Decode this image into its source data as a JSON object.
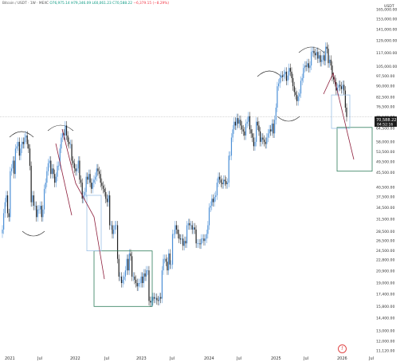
{
  "header": {
    "symbol": "Bitcoin / USDT · 1W · MEXC",
    "open": "O76,975.14",
    "high": "H79,346.09",
    "low": "L60,061.23",
    "close": "C70,588.22",
    "change": "−6,379.15 (−8.29%)"
  },
  "quote_currency": "USDT",
  "price_label": {
    "price": "70,588.22",
    "countdown": "04:52:16"
  },
  "colors": {
    "up": "#4b8fd6",
    "down": "#1e1e1e",
    "box_green": "#2e7d5b",
    "box_blue": "#9cc1e6",
    "arrow": "#8e1f3c"
  },
  "chart_data": {
    "type": "candlestick",
    "y_scale": "log",
    "y_ticks": [
      "11,120.00",
      "12,000.00",
      "13,000.00",
      "14,400.00",
      "15,800.00",
      "17,400.00",
      "19,000.00",
      "20,900.00",
      "22,800.00",
      "24,500.00",
      "26,500.00",
      "28,500.00",
      "31,500.00",
      "34,500.00",
      "37,500.00",
      "40,500.00",
      "45,500.00",
      "49,500.00",
      "53,500.00",
      "58,000.00",
      "64,500.00",
      "70,500.00",
      "76,500.00",
      "82,500.00",
      "90,000.00",
      "97,500.00",
      "105,000.00",
      "117,000.00",
      "129,000.00",
      "141,000.00",
      "153,000.00",
      "165,000.00"
    ],
    "x_ticks": [
      "2021",
      "Jul",
      "2022",
      "Jul",
      "2023",
      "Jul",
      "2024",
      "Jul",
      "2025",
      "Jul",
      "2026",
      "Jul"
    ],
    "weekly_close": [
      29000,
      33000,
      36000,
      38000,
      33000,
      32000,
      46000,
      47000,
      50000,
      45000,
      55000,
      56000,
      58000,
      52000,
      55000,
      58000,
      57000,
      60000,
      61000,
      57000,
      55000,
      48000,
      36000,
      38000,
      35000,
      35000,
      32000,
      34000,
      34000,
      35000,
      32000,
      34000,
      40000,
      42000,
      46000,
      49000,
      50000,
      45000,
      47000,
      45000,
      42000,
      44000,
      48000,
      48000,
      55000,
      60000,
      62000,
      61000,
      66000,
      61000,
      58000,
      57000,
      57000,
      50000,
      49000,
      47000,
      46000,
      47000,
      50000,
      43000,
      42000,
      37000,
      38000,
      39000,
      44000,
      43000,
      45000,
      42000,
      40000,
      42000,
      43000,
      44000,
      47000,
      46000,
      45000,
      42000,
      41000,
      40000,
      39000,
      37000,
      36000,
      38000,
      30000,
      30000,
      28000,
      29000,
      30000,
      30000,
      23000,
      20000,
      20000,
      19000,
      19500,
      20000,
      21000,
      23000,
      21000,
      24000,
      23500,
      20000,
      20000,
      19500,
      19000,
      18500,
      19000,
      19000,
      20000,
      19000,
      20500,
      20000,
      21000,
      21000,
      16500,
      16300,
      16500,
      17000,
      16800,
      16900,
      16600,
      16500,
      17000,
      16800,
      21000,
      23000,
      23000,
      22500,
      21000,
      24000,
      22000,
      22000,
      28000,
      28000,
      30000,
      29000,
      28000,
      27000,
      26800,
      27000,
      25500,
      26500,
      26000,
      30000,
      30500,
      30000,
      30000,
      29000,
      29500,
      29000,
      26000,
      26000,
      26000,
      25800,
      27000,
      27000,
      26500,
      27000,
      28000,
      30000,
      34500,
      35000,
      37000,
      36000,
      37500,
      38000,
      42000,
      44000,
      43000,
      42000,
      41500,
      43000,
      42500,
      41500,
      42000,
      52000,
      52000,
      60000,
      64000,
      68000,
      66000,
      70000,
      67000,
      69000,
      66000,
      64000,
      63000,
      61000,
      67000,
      68000,
      71000,
      64000,
      62000,
      60000,
      56000,
      58000,
      68000,
      66000,
      63000,
      58000,
      60000,
      59000,
      58000,
      57000,
      60000,
      62000,
      64000,
      63000,
      67000,
      62000,
      69000,
      76000,
      90000,
      92000,
      96000,
      98000,
      97000,
      99000,
      101000,
      94000,
      98000,
      104000,
      101000,
      96000,
      90000,
      86000,
      84000,
      80000,
      83000,
      85000,
      94000,
      96000,
      104000,
      106000,
      105000,
      108000,
      104000,
      106000,
      118000,
      119000,
      117000,
      115000,
      118000,
      112000,
      115000,
      109000,
      111000,
      115000,
      110000,
      123000,
      121000,
      108000,
      111000,
      106000,
      97000,
      95000,
      93000,
      87000,
      89000,
      91000,
      90000,
      88000,
      91000,
      87000,
      76000,
      70588
    ],
    "annotations": [
      {
        "type": "box",
        "color": "green",
        "price_range": [
          15800,
          24500
        ],
        "time_range": [
          "2022-06",
          "2022-12"
        ]
      },
      {
        "type": "box",
        "color": "blue",
        "price_range": [
          24500,
          38000
        ],
        "time_range": [
          "2022-04",
          "2022-06"
        ]
      },
      {
        "type": "box",
        "color": "green",
        "price_range": [
          46000,
          65000
        ],
        "time_range": [
          "2026-01",
          "2026-04"
        ]
      },
      {
        "type": "box",
        "color": "blue",
        "price_range": [
          64500,
          84000
        ],
        "time_range": [
          "2025-12",
          "2026-01"
        ]
      }
    ]
  }
}
